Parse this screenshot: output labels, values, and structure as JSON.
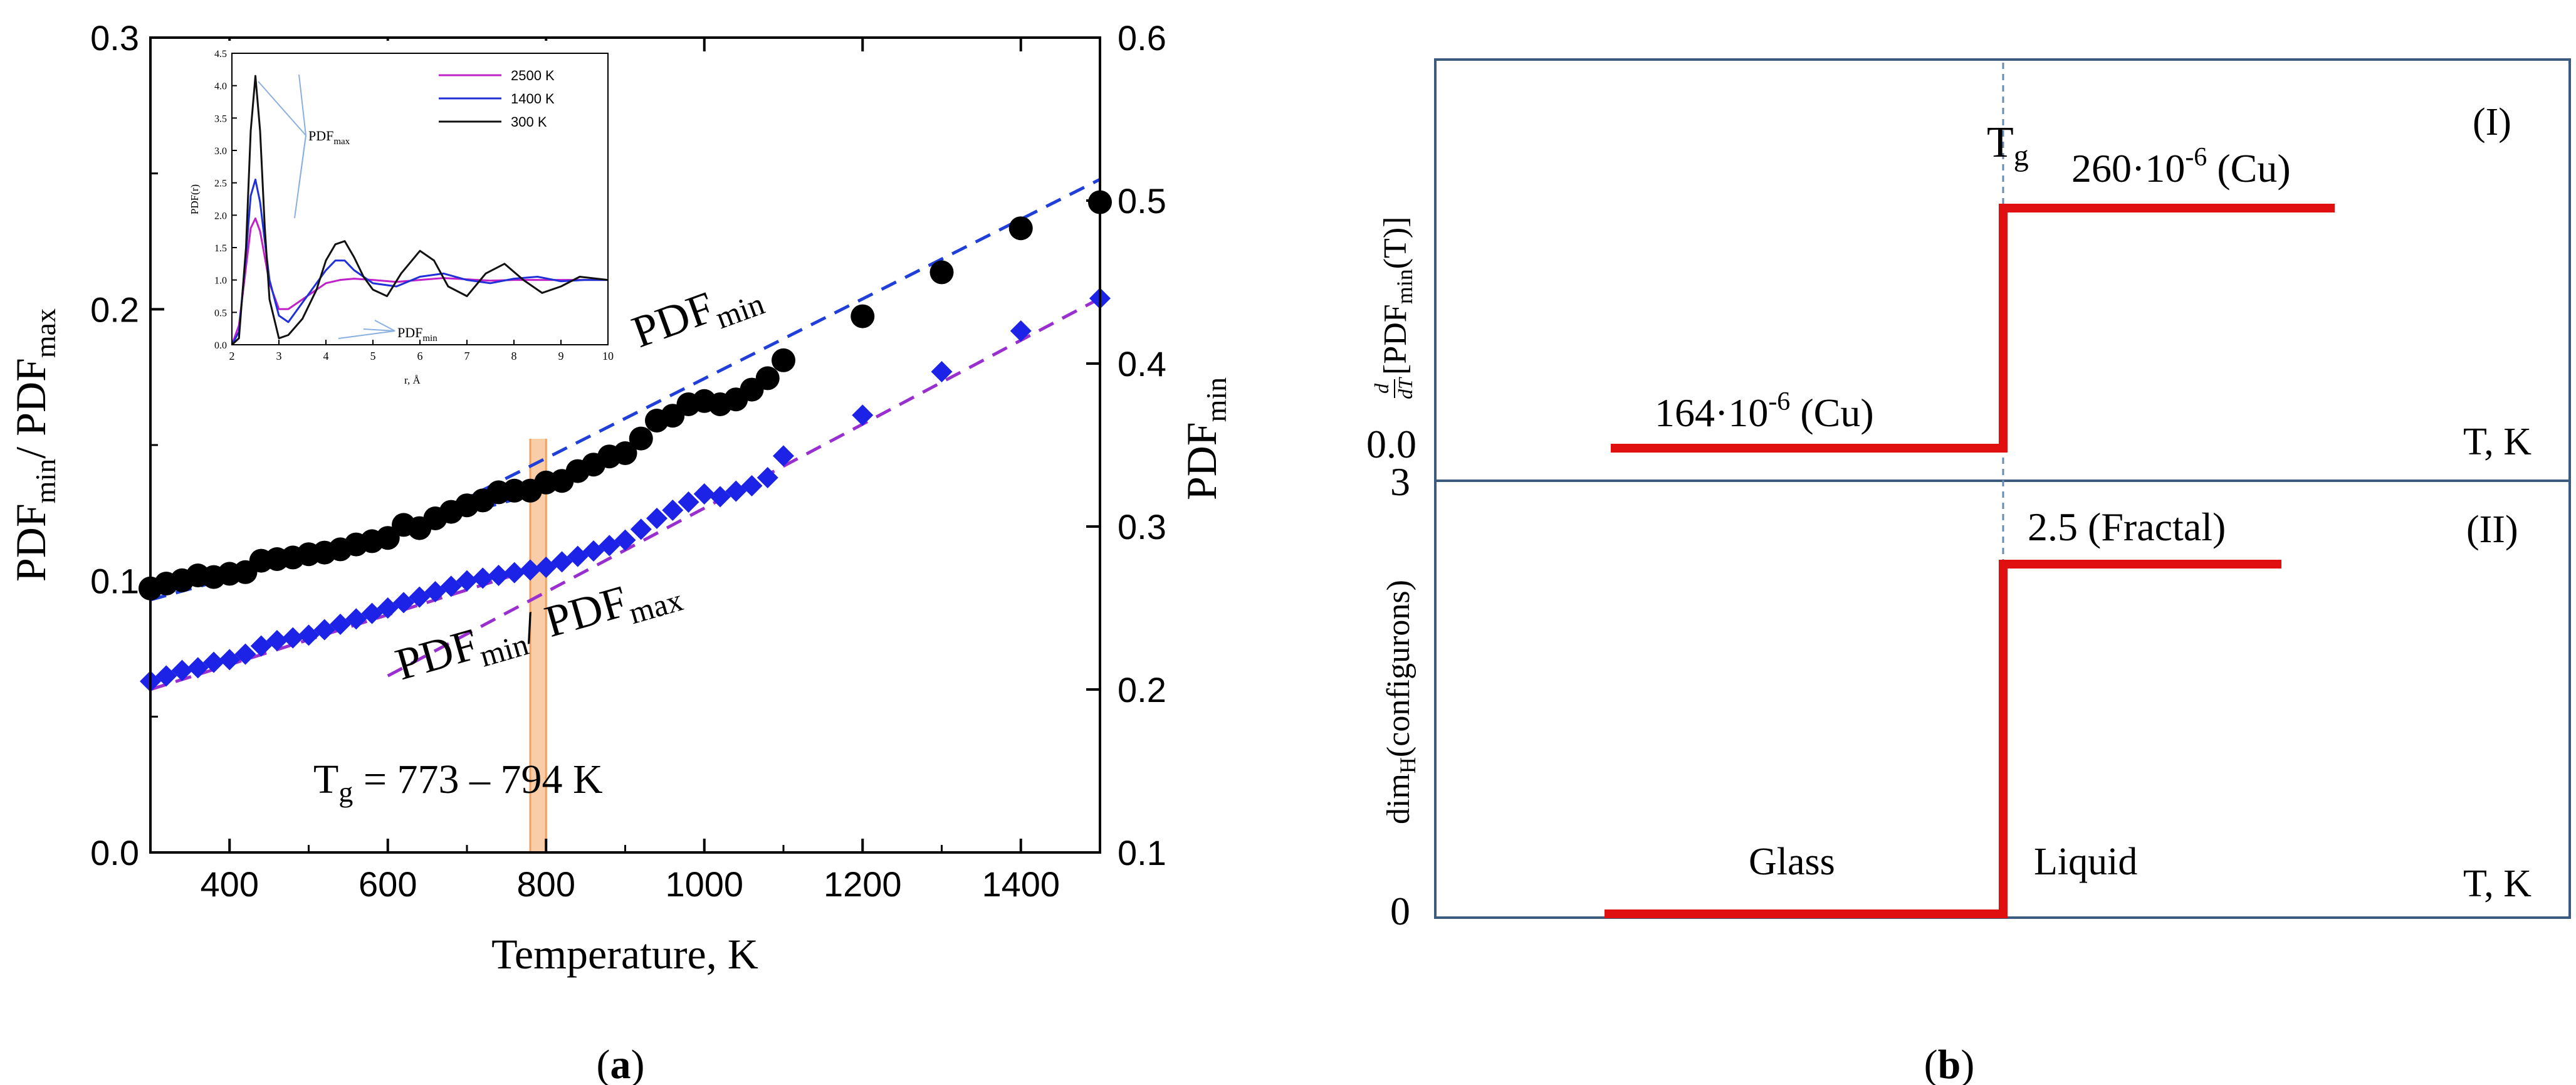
{
  "chart_data": [
    {
      "id": "a",
      "type": "scatter",
      "panel_label": "a",
      "xlabel": "Temperature, K",
      "ylabel_left": {
        "main": "PDF",
        "sub1": "min",
        "sep": "/ PDF",
        "sub2": "max"
      },
      "ylabel_right": {
        "main": "PDF",
        "sub": "min"
      },
      "xlim": [
        300,
        1500
      ],
      "ylim_left": [
        0.0,
        0.3
      ],
      "ylim_right": [
        0.1,
        0.6
      ],
      "x_ticks": [
        "400",
        "600",
        "800",
        "1000",
        "1200",
        "1400"
      ],
      "x_tick_values": [
        400,
        600,
        800,
        1000,
        1200,
        1400
      ],
      "y_left_ticks": [
        "0.0",
        "0.1",
        "0.2",
        "0.3"
      ],
      "y_left_tick_values": [
        0.0,
        0.1,
        0.2,
        0.3
      ],
      "y_right_ticks": [
        "0.1",
        "0.2",
        "0.3",
        "0.4",
        "0.5",
        "0.6"
      ],
      "y_right_tick_values": [
        0.1,
        0.2,
        0.3,
        0.4,
        0.5,
        0.6
      ],
      "colors": {
        "pdfmin": "#000000",
        "ratio": "#1c22e6",
        "fit_pdfmin": "#1f3fd8",
        "fit_ratio": "#9a2fd0",
        "tg_band": "#f4a460"
      },
      "series": [
        {
          "name": "PDFmin",
          "axis": "right",
          "marker": "circle",
          "x": [
            300,
            320,
            340,
            360,
            380,
            400,
            420,
            440,
            460,
            480,
            500,
            520,
            540,
            560,
            580,
            600,
            620,
            640,
            660,
            680,
            700,
            720,
            740,
            760,
            780,
            800,
            820,
            840,
            860,
            880,
            900,
            920,
            940,
            960,
            980,
            1000,
            1020,
            1040,
            1060,
            1080,
            1100,
            1200,
            1300,
            1400,
            1500
          ],
          "y": [
            0.262,
            0.265,
            0.267,
            0.27,
            0.269,
            0.271,
            0.272,
            0.279,
            0.28,
            0.281,
            0.283,
            0.284,
            0.286,
            0.289,
            0.291,
            0.293,
            0.301,
            0.299,
            0.305,
            0.309,
            0.313,
            0.316,
            0.321,
            0.322,
            0.322,
            0.327,
            0.328,
            0.334,
            0.338,
            0.343,
            0.345,
            0.354,
            0.365,
            0.368,
            0.375,
            0.377,
            0.375,
            0.378,
            0.384,
            0.391,
            0.402,
            0.429,
            0.456,
            0.483,
            0.499
          ]
        },
        {
          "name": "PDFmin/PDFmax",
          "axis": "left",
          "marker": "diamond",
          "x": [
            300,
            320,
            340,
            360,
            380,
            400,
            420,
            440,
            460,
            480,
            500,
            520,
            540,
            560,
            580,
            600,
            620,
            640,
            660,
            680,
            700,
            720,
            740,
            760,
            780,
            800,
            820,
            840,
            860,
            880,
            900,
            920,
            940,
            960,
            980,
            1000,
            1020,
            1040,
            1060,
            1080,
            1100,
            1200,
            1300,
            1400,
            1500
          ],
          "y": [
            0.063,
            0.065,
            0.067,
            0.068,
            0.07,
            0.071,
            0.073,
            0.076,
            0.078,
            0.079,
            0.08,
            0.082,
            0.084,
            0.086,
            0.088,
            0.09,
            0.092,
            0.094,
            0.096,
            0.098,
            0.1,
            0.101,
            0.102,
            0.103,
            0.104,
            0.105,
            0.107,
            0.109,
            0.111,
            0.113,
            0.115,
            0.119,
            0.123,
            0.126,
            0.129,
            0.132,
            0.131,
            0.133,
            0.135,
            0.138,
            0.146,
            0.161,
            0.177,
            0.192,
            0.204
          ]
        }
      ],
      "fit_lines": [
        {
          "name": "PDFmin fit low",
          "axis": "right",
          "x": [
            300,
            800
          ],
          "y": [
            0.255,
            0.322
          ]
        },
        {
          "name": "PDFmin fit high",
          "axis": "right",
          "x": [
            600,
            1500
          ],
          "y": [
            0.293,
            0.513
          ]
        },
        {
          "name": "ratio fit low",
          "axis": "left",
          "x": [
            300,
            900
          ],
          "y": [
            0.06,
            0.115
          ]
        },
        {
          "name": "ratio fit high",
          "axis": "left",
          "x": [
            600,
            1500
          ],
          "y": [
            0.065,
            0.204
          ]
        }
      ],
      "tg_band": [
        780,
        800
      ],
      "annotations": {
        "pdfmin_label": {
          "main": "PDF",
          "sub": "min"
        },
        "ratio_label": {
          "main": "PDF",
          "sub1": "min",
          "sep": "/ PDF",
          "sub2": "max"
        },
        "tg_label": {
          "main": "T",
          "sub": "g",
          "rest": " = 773 – 794 K"
        }
      },
      "inset": {
        "xlabel": "r, Å",
        "ylabel": "PDF(r)",
        "xlim": [
          2,
          10
        ],
        "ylim": [
          0.0,
          4.5
        ],
        "x_ticks": [
          "2",
          "3",
          "4",
          "5",
          "6",
          "7",
          "8",
          "9",
          "10"
        ],
        "y_ticks": [
          "0.0",
          "0.5",
          "1.0",
          "1.5",
          "2.0",
          "2.5",
          "3.0",
          "3.5",
          "4.0",
          "4.5"
        ],
        "legend": [
          {
            "label": "2500 K",
            "color": "#c020c8"
          },
          {
            "label": "1400 K",
            "color": "#2030d8"
          },
          {
            "label": "300 K",
            "color": "#111111"
          }
        ],
        "pdfmax_label": {
          "main": "PDF",
          "sub": "max"
        },
        "pdfmin_label": {
          "main": "PDF",
          "sub": "min"
        },
        "series": [
          {
            "name": "2500 K",
            "x": [
              2.0,
              2.15,
              2.3,
              2.4,
              2.5,
              2.6,
              2.7,
              2.8,
              3.0,
              3.2,
              3.4,
              3.6,
              3.8,
              4.0,
              4.3,
              4.6,
              5.0,
              5.5,
              6.0,
              6.5,
              7.0,
              7.5,
              8.0,
              8.5,
              9.0,
              9.5,
              10.0
            ],
            "y": [
              0.0,
              0.3,
              1.2,
              1.8,
              1.95,
              1.75,
              1.35,
              0.95,
              0.55,
              0.55,
              0.65,
              0.75,
              0.85,
              0.95,
              1.0,
              1.02,
              1.0,
              0.97,
              1.0,
              1.03,
              1.01,
              0.99,
              1.0,
              1.0,
              1.0,
              1.0,
              1.0
            ]
          },
          {
            "name": "1400 K",
            "x": [
              2.0,
              2.15,
              2.3,
              2.4,
              2.5,
              2.6,
              2.7,
              2.8,
              3.0,
              3.2,
              3.4,
              3.6,
              3.8,
              4.0,
              4.2,
              4.4,
              4.6,
              5.0,
              5.5,
              6.0,
              6.5,
              7.0,
              7.5,
              8.0,
              8.5,
              9.0,
              9.5,
              10.0
            ],
            "y": [
              0.0,
              0.2,
              1.4,
              2.3,
              2.55,
              2.2,
              1.6,
              1.0,
              0.45,
              0.35,
              0.55,
              0.75,
              0.95,
              1.15,
              1.3,
              1.3,
              1.15,
              0.95,
              0.9,
              1.05,
              1.1,
              1.0,
              0.95,
              1.02,
              1.05,
              0.98,
              1.0,
              1.0
            ]
          },
          {
            "name": "300 K",
            "x": [
              2.0,
              2.15,
              2.3,
              2.4,
              2.5,
              2.6,
              2.7,
              2.8,
              3.0,
              3.2,
              3.5,
              3.8,
              4.0,
              4.2,
              4.4,
              4.6,
              4.8,
              5.0,
              5.3,
              5.6,
              6.0,
              6.3,
              6.6,
              7.0,
              7.4,
              7.8,
              8.2,
              8.6,
              9.0,
              9.4,
              10.0
            ],
            "y": [
              0.0,
              0.1,
              1.5,
              3.3,
              4.15,
              3.3,
              1.8,
              0.7,
              0.1,
              0.15,
              0.4,
              0.85,
              1.3,
              1.55,
              1.6,
              1.35,
              1.05,
              0.85,
              0.75,
              1.1,
              1.45,
              1.3,
              0.9,
              0.75,
              1.1,
              1.25,
              1.0,
              0.8,
              0.9,
              1.05,
              1.0
            ]
          }
        ]
      }
    },
    {
      "id": "b",
      "type": "line",
      "panel_label": "b",
      "panel_I": {
        "tag": "(I)",
        "ylabel_deriv": "d",
        "ylabel_dt": "dT",
        "ylabel_text": "[PDF",
        "ylabel_sub": "min",
        "ylabel_end": "(T)]",
        "y_ticks": [
          "0.0"
        ],
        "x_label": "T, K",
        "tg": {
          "main": "T",
          "sub": "g"
        },
        "glass_value": {
          "mant": "164·10",
          "exp": "-6",
          "rest": " (Cu)"
        },
        "liquid_value": {
          "mant": "260·10",
          "exp": "-6",
          "rest": " (Cu)"
        },
        "glass_level": 164,
        "liquid_level": 260
      },
      "panel_II": {
        "tag": "(II)",
        "ylabel": "dim",
        "ylabel_sub": "H",
        "ylabel_rest": "(configurons)",
        "y_ticks": [
          "3",
          "0"
        ],
        "x_label": "T, K",
        "liquid_value": "2.5 (Fractal)",
        "glass_text": "Glass",
        "liquid_text": "Liquid",
        "glass_level": 0,
        "liquid_level": 2.5,
        "ylim": [
          0,
          3
        ]
      },
      "colors": {
        "step": "#e01010",
        "frame": "#3a5a80",
        "tg_line": "#6a8ab0"
      }
    }
  ]
}
